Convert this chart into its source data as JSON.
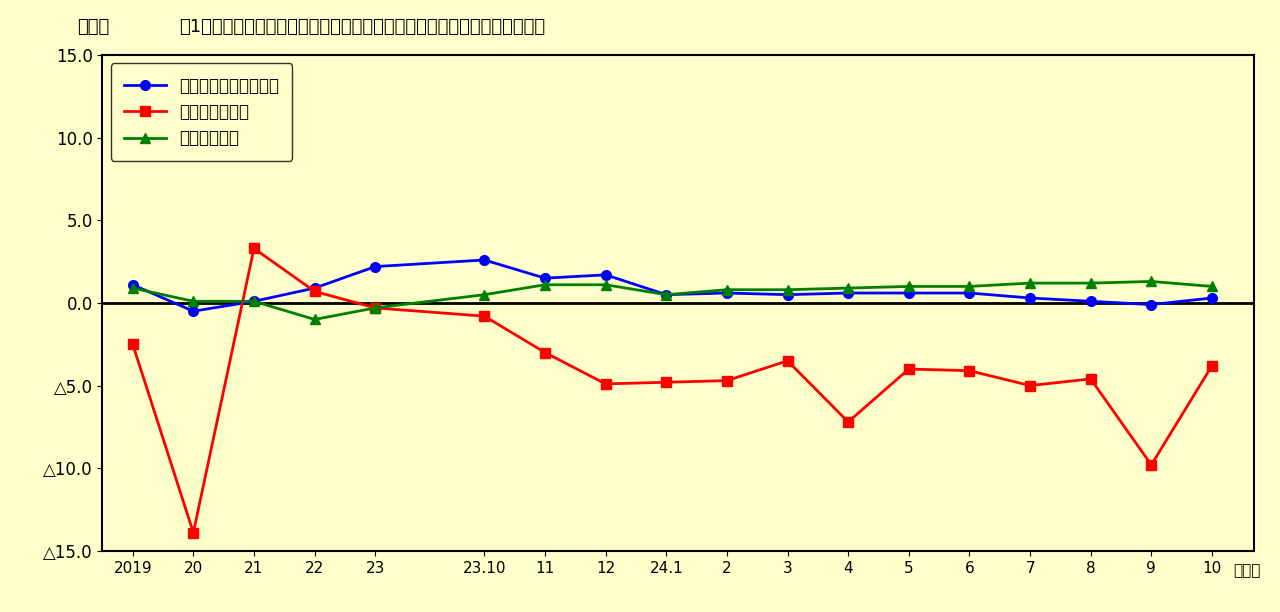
{
  "title": "図1　対前年比、対前年同月比の推移（調査産業計、事業所規模５人以上）",
  "title_prefix": "（％）",
  "xlabel_text": "（月）",
  "background_color": "#FFFFCC",
  "ylim": [
    -15.0,
    15.0
  ],
  "yticks": [
    -15.0,
    -10.0,
    -5.0,
    0.0,
    5.0,
    10.0,
    15.0
  ],
  "xtick_labels": [
    "2019",
    "20",
    "21",
    "22",
    "23",
    "23.10",
    "11",
    "12",
    "24.1",
    "2",
    "3",
    "4",
    "5",
    "6",
    "7",
    "8",
    "9",
    "10"
  ],
  "legend_labels": [
    "きまって支給する給与",
    "所定外労働時間",
    "常用雇用指数"
  ],
  "x_positions": [
    0,
    1,
    2,
    3,
    4,
    5.8,
    6.8,
    7.8,
    8.8,
    9.8,
    10.8,
    11.8,
    12.8,
    13.8,
    14.8,
    15.8,
    16.8,
    17.8
  ],
  "series_blue": {
    "color": "#0000FF",
    "marker": "o",
    "markersize": 7,
    "linewidth": 2,
    "values": [
      1.1,
      -0.5,
      0.1,
      0.9,
      2.2,
      2.6,
      1.5,
      1.7,
      0.5,
      0.6,
      0.5,
      0.6,
      0.6,
      0.6,
      0.3,
      0.1,
      -0.1,
      0.3
    ]
  },
  "series_red": {
    "color": "#FF0000",
    "marker": "s",
    "markersize": 7,
    "linewidth": 2,
    "values": [
      -2.5,
      -13.9,
      3.3,
      0.7,
      -0.3,
      -0.8,
      -3.0,
      -4.9,
      -4.8,
      -4.7,
      -3.5,
      -7.2,
      -4.0,
      -4.1,
      -5.0,
      -4.6,
      -9.8,
      -3.8
    ]
  },
  "series_green": {
    "color": "#008000",
    "marker": "^",
    "markersize": 7,
    "linewidth": 2,
    "values": [
      0.9,
      0.1,
      0.1,
      -1.0,
      -0.3,
      0.5,
      1.1,
      1.1,
      0.5,
      0.8,
      0.8,
      0.9,
      1.0,
      1.0,
      1.2,
      1.2,
      1.3,
      1.0
    ]
  }
}
